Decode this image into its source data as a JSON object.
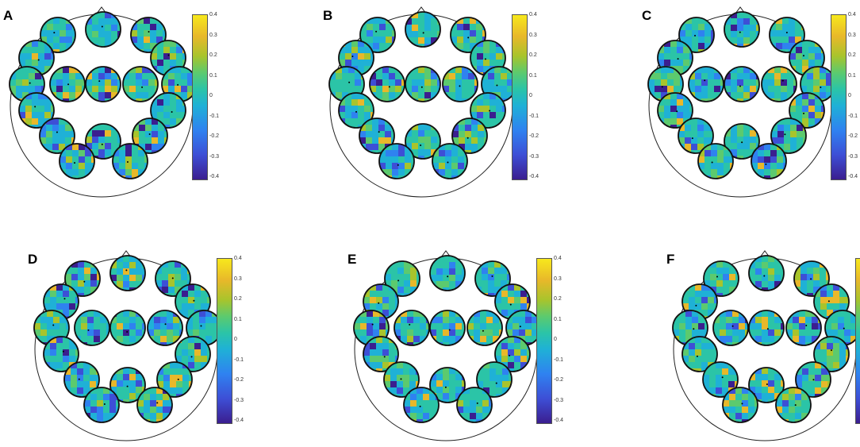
{
  "panels": [
    {
      "label": "A",
      "seed": 11
    },
    {
      "label": "B",
      "seed": 23
    },
    {
      "label": "C",
      "seed": 37
    },
    {
      "label": "D",
      "seed": 41
    },
    {
      "label": "E",
      "seed": 53
    },
    {
      "label": "F",
      "seed": 67
    }
  ],
  "colorbar": {
    "ticks": [
      "0.4",
      "0.3",
      "0.2",
      "0.1",
      "0",
      "-0.1",
      "-0.2",
      "-0.3",
      "-0.4"
    ],
    "vmin": -0.4,
    "vmax": 0.4
  },
  "colormap": [
    "#3b1e8f",
    "#3d4fd6",
    "#2f82f0",
    "#1fb1d6",
    "#2bc4a7",
    "#5cca6e",
    "#a8c42c",
    "#e8b82a",
    "#f7e81c"
  ]
}
